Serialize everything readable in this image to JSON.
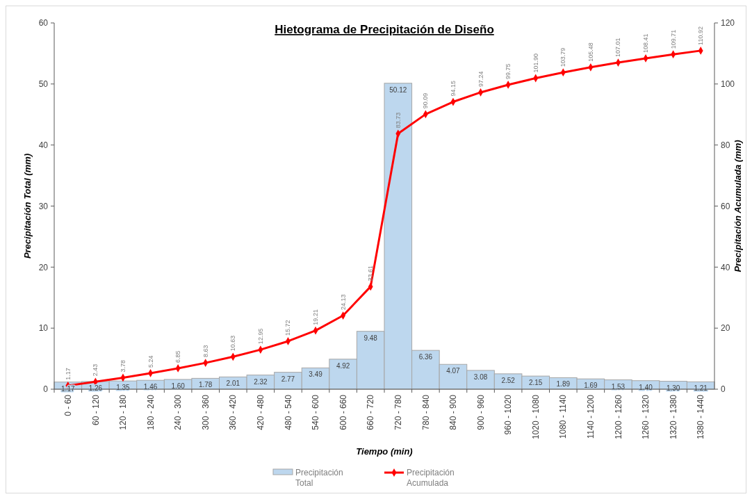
{
  "chart_data": {
    "type": "bar",
    "title": "Hietograma de Precipitación de Diseño",
    "xlabel": "Tiempo (min)",
    "ylabel": "Precipitación Total (mm)",
    "y2label": "Precipitación Acumulada (mm)",
    "categories": [
      "0 - 60",
      "60 - 120",
      "120 - 180",
      "180 - 240",
      "240 - 300",
      "300 - 360",
      "360 - 420",
      "420 - 480",
      "480 - 540",
      "540 - 600",
      "600 - 660",
      "660 - 720",
      "720 - 780",
      "780 - 840",
      "840 - 900",
      "900 - 960",
      "960 - 1020",
      "1020 - 1080",
      "1080 - 1140",
      "1140 - 1200",
      "1200 - 1260",
      "1260 - 1320",
      "1320 - 1380",
      "1380 - 1440"
    ],
    "series": [
      {
        "name": "Precipitación Total",
        "color": "#bdd7ee",
        "values": [
          1.17,
          1.26,
          1.35,
          1.46,
          1.6,
          1.78,
          2.01,
          2.32,
          2.77,
          3.49,
          4.92,
          9.48,
          50.12,
          6.36,
          4.07,
          3.08,
          2.52,
          2.15,
          1.89,
          1.69,
          1.53,
          1.4,
          1.3,
          1.21
        ],
        "value_labels": [
          "1.17",
          "1.26",
          "1.35",
          "1.46",
          "1.60",
          "1.78",
          "2.01",
          "2.32",
          "2.77",
          "3.49",
          "4.92",
          "9.48",
          "50.12",
          "6.36",
          "4.07",
          "3.08",
          "2.52",
          "2.15",
          "1.89",
          "1.69",
          "1.53",
          "1.40",
          "1.30",
          "1.21"
        ]
      },
      {
        "name": "Precipitación Acumulada",
        "type": "line",
        "axis": "y2",
        "color": "#ff0000",
        "marker": "diamond",
        "values": [
          1.17,
          2.43,
          3.78,
          5.24,
          6.85,
          8.63,
          10.63,
          12.95,
          15.72,
          19.21,
          24.13,
          33.61,
          83.73,
          90.09,
          94.15,
          97.24,
          99.75,
          101.9,
          103.79,
          105.48,
          107.01,
          108.41,
          109.71,
          110.92
        ],
        "value_labels": [
          "1.17",
          "2.43",
          "3.78",
          "5.24",
          "6.85",
          "8.63",
          "10.63",
          "12.95",
          "15.72",
          "19.21",
          "24.13",
          "33.61",
          "83.73",
          "90.09",
          "94.15",
          "97.24",
          "99.75",
          "101.90",
          "103.79",
          "105.48",
          "107.01",
          "108.41",
          "109.71",
          "110.92"
        ]
      }
    ],
    "ylim": [
      0,
      60
    ],
    "yticks": [
      0,
      10,
      20,
      30,
      40,
      50,
      60
    ],
    "y2lim": [
      0,
      120
    ],
    "y2ticks": [
      0,
      20,
      40,
      60,
      80,
      100,
      120
    ],
    "legend": "bottom",
    "grid": false
  }
}
